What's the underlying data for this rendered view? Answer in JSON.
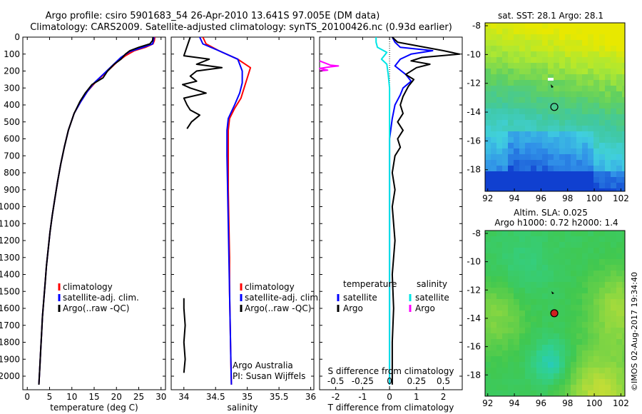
{
  "title": {
    "line1": "Argo profile: csiro 5901683_54 26-Apr-2010 13.641S 97.005E (DM data)",
    "line2": "Climatology: CARS2009. Satellite-adjusted climatology: synTS_20100426.nc (0.93d earlier)"
  },
  "colors": {
    "climatology": "#ff0000",
    "satellite": "#0000ff",
    "argo": "#000000",
    "sat_salinity": "#00e5e5",
    "argo_salinity": "#ff00ff"
  },
  "y_depth": {
    "ticks": [
      0,
      100,
      200,
      300,
      400,
      500,
      600,
      700,
      800,
      900,
      1000,
      1100,
      1200,
      1300,
      1400,
      1500,
      1600,
      1700,
      1800,
      1900,
      2000
    ],
    "ylim": [
      0,
      2080
    ]
  },
  "chart_data": [
    {
      "id": "temperature",
      "type": "line",
      "xlabel": "temperature (deg C)",
      "xlim": [
        -1,
        31
      ],
      "xticks": [
        0,
        5,
        10,
        15,
        20,
        25,
        30
      ],
      "legend": [
        "climatology",
        "satellite-adj. clim.",
        "Argo(..raw -QC)"
      ],
      "series": [
        {
          "name": "climatology",
          "color": "#ff0000",
          "points": [
            [
              28.6,
              0
            ],
            [
              28.5,
              20
            ],
            [
              28.2,
              40
            ],
            [
              26.5,
              60
            ],
            [
              24,
              80
            ],
            [
              22,
              110
            ],
            [
              20,
              150
            ],
            [
              18,
              200
            ],
            [
              15.5,
              260
            ],
            [
              13.5,
              320
            ],
            [
              12,
              380
            ],
            [
              10.5,
              450
            ],
            [
              9.2,
              550
            ],
            [
              8.3,
              650
            ],
            [
              7.5,
              750
            ],
            [
              6.8,
              850
            ],
            [
              6.2,
              950
            ],
            [
              5.6,
              1050
            ],
            [
              5.1,
              1150
            ],
            [
              4.7,
              1250
            ],
            [
              4.3,
              1350
            ],
            [
              4,
              1450
            ],
            [
              3.7,
              1550
            ],
            [
              3.4,
              1650
            ],
            [
              3.2,
              1750
            ],
            [
              3,
              1850
            ],
            [
              2.8,
              1950
            ],
            [
              2.6,
              2050
            ]
          ]
        },
        {
          "name": "satellite-adj. clim.",
          "color": "#0000ff",
          "points": [
            [
              28.4,
              0
            ],
            [
              28.3,
              20
            ],
            [
              28.1,
              40
            ],
            [
              26,
              60
            ],
            [
              23,
              85
            ],
            [
              21,
              120
            ],
            [
              19,
              170
            ],
            [
              17,
              220
            ],
            [
              15,
              270
            ],
            [
              13.5,
              320
            ],
            [
              12,
              380
            ],
            [
              10.5,
              450
            ],
            [
              9.2,
              550
            ],
            [
              8.3,
              650
            ],
            [
              7.5,
              750
            ],
            [
              6.8,
              850
            ],
            [
              6.2,
              950
            ],
            [
              5.6,
              1050
            ],
            [
              5.1,
              1150
            ],
            [
              4.7,
              1250
            ],
            [
              4.3,
              1350
            ],
            [
              4,
              1450
            ],
            [
              3.7,
              1550
            ],
            [
              3.4,
              1650
            ],
            [
              3.2,
              1750
            ],
            [
              3,
              1850
            ],
            [
              2.8,
              1950
            ],
            [
              2.6,
              2050
            ]
          ]
        },
        {
          "name": "Argo(..raw -QC)",
          "color": "#000000",
          "points": [
            [
              28.2,
              0
            ],
            [
              28.1,
              20
            ],
            [
              27.5,
              40
            ],
            [
              25,
              60
            ],
            [
              23,
              80
            ],
            [
              22,
              100
            ],
            [
              21,
              130
            ],
            [
              19.5,
              160
            ],
            [
              18,
              200
            ],
            [
              17,
              240
            ],
            [
              14.5,
              280
            ],
            [
              13,
              330
            ],
            [
              11.8,
              380
            ],
            [
              10.5,
              450
            ],
            [
              9.2,
              550
            ],
            [
              8.3,
              650
            ],
            [
              7.5,
              750
            ],
            [
              6.8,
              850
            ],
            [
              6.2,
              950
            ],
            [
              5.6,
              1050
            ],
            [
              5.1,
              1150
            ],
            [
              4.7,
              1250
            ],
            [
              4.3,
              1350
            ],
            [
              4,
              1450
            ],
            [
              3.7,
              1550
            ],
            [
              3.4,
              1650
            ],
            [
              3.2,
              1750
            ],
            [
              3,
              1850
            ],
            [
              2.8,
              1950
            ],
            [
              2.6,
              2050
            ]
          ]
        }
      ]
    },
    {
      "id": "salinity",
      "type": "line",
      "xlabel": "salinity",
      "xlim": [
        33.8,
        36.05
      ],
      "xticks": [
        34,
        34.5,
        35,
        35.5,
        36
      ],
      "xtick_labels": [
        "34",
        "34.5",
        "35",
        "35.5",
        "36"
      ],
      "legend": [
        "climatology",
        "satellite-adj. clim.",
        "Argo(..raw -QC)"
      ],
      "annotation": [
        "Argo Australia",
        "PI: Susan Wijffels"
      ],
      "series": [
        {
          "name": "climatology",
          "color": "#ff0000",
          "points": [
            [
              34.3,
              0
            ],
            [
              34.35,
              40
            ],
            [
              34.55,
              80
            ],
            [
              34.85,
              130
            ],
            [
              35.05,
              180
            ],
            [
              35.0,
              240
            ],
            [
              34.95,
              300
            ],
            [
              34.9,
              360
            ],
            [
              34.8,
              420
            ],
            [
              34.72,
              480
            ],
            [
              34.7,
              550
            ],
            [
              34.7,
              700
            ],
            [
              34.7,
              900
            ],
            [
              34.71,
              1100
            ],
            [
              34.72,
              1300
            ],
            [
              34.72,
              1500
            ],
            [
              34.73,
              1700
            ],
            [
              34.74,
              1900
            ],
            [
              34.75,
              2050
            ]
          ]
        },
        {
          "name": "satellite-adj. clim.",
          "color": "#0000ff",
          "points": [
            [
              34.25,
              0
            ],
            [
              34.3,
              40
            ],
            [
              34.55,
              80
            ],
            [
              34.85,
              130
            ],
            [
              34.92,
              200
            ],
            [
              34.92,
              270
            ],
            [
              34.88,
              330
            ],
            [
              34.8,
              400
            ],
            [
              34.7,
              480
            ],
            [
              34.68,
              550
            ],
            [
              34.68,
              700
            ],
            [
              34.69,
              900
            ],
            [
              34.7,
              1100
            ],
            [
              34.71,
              1300
            ],
            [
              34.72,
              1500
            ],
            [
              34.73,
              1700
            ],
            [
              34.74,
              1900
            ],
            [
              34.75,
              2050
            ]
          ]
        },
        {
          "name": "Argo(..raw -QC)",
          "color": "#000000",
          "points": [
            [
              34.1,
              0
            ],
            [
              34.0,
              110
            ],
            [
              34.4,
              130
            ],
            [
              34.2,
              160
            ],
            [
              34.6,
              180
            ],
            [
              34.2,
              200
            ],
            [
              34.1,
              230
            ],
            [
              34.2,
              260
            ],
            [
              33.98,
              280
            ],
            [
              34.1,
              300
            ],
            [
              34.35,
              330
            ],
            [
              34.0,
              360
            ],
            [
              34.05,
              400
            ],
            [
              34.1,
              430
            ],
            [
              34.25,
              460
            ],
            [
              34.12,
              500
            ],
            [
              34.05,
              540
            ]
          ]
        },
        {
          "name": "Argo(..raw -QC)",
          "color": "#000000",
          "points": [
            [
              34.0,
              1540
            ],
            [
              34.0,
              1600
            ],
            [
              34.02,
              1700
            ],
            [
              34.0,
              1800
            ],
            [
              34.02,
              1900
            ],
            [
              34.0,
              1980
            ]
          ]
        }
      ]
    },
    {
      "id": "difference",
      "type": "line",
      "xlabel_top": "S difference from climatology",
      "xlabel": "T difference from climatology",
      "xlim": [
        -2.6,
        2.7
      ],
      "xticks_T": [
        -2,
        -1,
        0,
        1,
        2
      ],
      "xticks_S": [
        -0.5,
        -0.25,
        0,
        0.25,
        0.5
      ],
      "xtick_labels_S": [
        "-0.5",
        "-0.25",
        "0",
        "0.25",
        "0.5"
      ],
      "legend_temperature_title": "temperature",
      "legend_salinity_title": "salinity",
      "legend": [
        {
          "group": "temperature",
          "name": "satellite",
          "color": "#0000ff"
        },
        {
          "group": "temperature",
          "name": "Argo",
          "color": "#000000"
        },
        {
          "group": "salinity",
          "name": "satellite",
          "color": "#00e5e5"
        },
        {
          "group": "salinity",
          "name": "Argo",
          "color": "#ff00ff"
        }
      ],
      "series": [
        {
          "name": "temperature satellite",
          "color": "#0000ff",
          "points": [
            [
              0.1,
              0
            ],
            [
              0.2,
              30
            ],
            [
              0.4,
              60
            ],
            [
              1.6,
              80
            ],
            [
              0.8,
              100
            ],
            [
              0.4,
              130
            ],
            [
              0.2,
              170
            ],
            [
              0.6,
              220
            ],
            [
              0.8,
              260
            ],
            [
              0.5,
              300
            ],
            [
              0.4,
              340
            ],
            [
              0.2,
              400
            ],
            [
              0.1,
              480
            ],
            [
              0,
              600
            ],
            [
              0,
              1000
            ],
            [
              0,
              1500
            ],
            [
              0,
              2050
            ]
          ]
        },
        {
          "name": "temperature Argo",
          "color": "#000000",
          "points": [
            [
              0.1,
              0
            ],
            [
              0.3,
              30
            ],
            [
              2.0,
              80
            ],
            [
              2.6,
              100
            ],
            [
              1.2,
              120
            ],
            [
              0.8,
              140
            ],
            [
              1.5,
              160
            ],
            [
              1.0,
              180
            ],
            [
              0.6,
              220
            ],
            [
              0.9,
              250
            ],
            [
              0.7,
              290
            ],
            [
              0.5,
              350
            ],
            [
              0.4,
              400
            ],
            [
              0.5,
              450
            ],
            [
              0.3,
              500
            ],
            [
              0.5,
              550
            ],
            [
              0.3,
              600
            ],
            [
              0.4,
              650
            ],
            [
              0.2,
              700
            ],
            [
              0.1,
              800
            ],
            [
              0.2,
              900
            ],
            [
              0.1,
              1000
            ],
            [
              0.2,
              1200
            ],
            [
              0.1,
              1400
            ],
            [
              0.15,
              1600
            ],
            [
              0.1,
              1800
            ],
            [
              0.1,
              2050
            ]
          ]
        },
        {
          "name": "salinity satellite",
          "color": "#00e5e5",
          "points": [
            [
              -0.5,
              0
            ],
            [
              -0.5,
              30
            ],
            [
              -0.45,
              60
            ],
            [
              -0.1,
              90
            ],
            [
              -0.2,
              110
            ],
            [
              -0.3,
              130
            ],
            [
              -0.1,
              160
            ],
            [
              -0.05,
              220
            ],
            [
              0,
              300
            ],
            [
              0,
              500
            ],
            [
              0,
              900
            ],
            [
              0,
              1400
            ],
            [
              0,
              2050
            ]
          ]
        },
        {
          "name": "salinity Argo",
          "color": "#ff00ff",
          "points": [
            [
              -2.6,
              140
            ],
            [
              -2.2,
              165
            ],
            [
              -1.9,
              170
            ],
            [
              -2.2,
              175
            ],
            [
              -2.6,
              185
            ],
            [
              -2.3,
              195
            ],
            [
              -2.6,
              200
            ]
          ]
        }
      ],
      "zero_line": "dotted"
    }
  ],
  "maps": {
    "map1": {
      "title": "sat. SST: 28.1  Argo: 28.1",
      "xticks": [
        "92",
        "94",
        "96",
        "98",
        "100",
        "102"
      ],
      "yticks": [
        "-8",
        "-10",
        "-12",
        "-14",
        "-16",
        "-18"
      ],
      "lon_range": [
        91.8,
        102.3
      ],
      "lat_range": [
        -19.5,
        -7.8
      ],
      "colorscale": [
        "#e8e800",
        "#b0e830",
        "#60d060",
        "#40c8a0",
        "#40d0e0",
        "#3090e8",
        "#1040d0"
      ],
      "marker": {
        "lon": 97.0,
        "lat": -13.64,
        "style": "open-circle"
      }
    },
    "map2": {
      "title_line1": "Altim. SLA: 0.025",
      "title_line2": "Argo h1000: 0.72 h2000: 1.4",
      "xticks": [
        "92",
        "94",
        "96",
        "98",
        "100",
        "102"
      ],
      "yticks": [
        "-8",
        "-10",
        "-12",
        "-14",
        "-16",
        "-18"
      ],
      "lon_range": [
        91.8,
        102.3
      ],
      "lat_range": [
        -19.5,
        -7.8
      ],
      "marker": {
        "lon": 97.0,
        "lat": -13.64,
        "style": "filled-circle",
        "color": "#d02020"
      }
    }
  },
  "footer": {
    "credit": "©IMOS 02-Aug-2017 19:34:40"
  }
}
